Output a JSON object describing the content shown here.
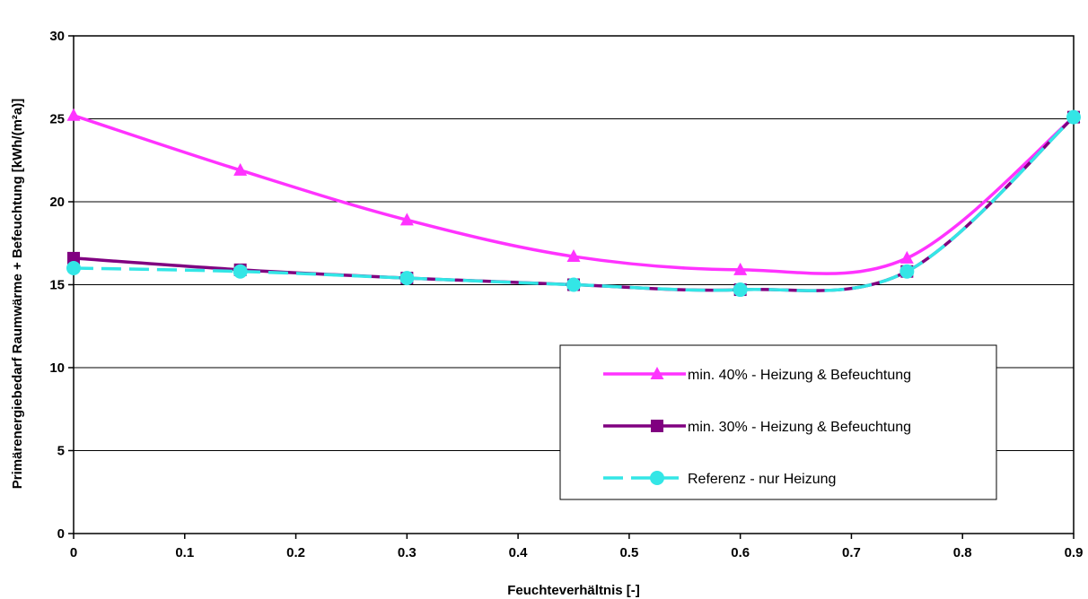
{
  "chart_data": {
    "type": "line",
    "title": "",
    "xlabel": "Feuchteverhältnis [-]",
    "ylabel": "Primärenergiebedarf Raumwärme + Befeuchtung [kWh/(m²a)]",
    "xlim": [
      0,
      0.9
    ],
    "ylim": [
      0,
      30
    ],
    "x_ticks": [
      "0",
      "0.1",
      "0.2",
      "0.3",
      "0.4",
      "0.5",
      "0.6",
      "0.7",
      "0.8",
      "0.9"
    ],
    "y_ticks": [
      "0",
      "5",
      "10",
      "15",
      "20",
      "25",
      "30"
    ],
    "grid": "horizontal",
    "legend_position": "bottom-right",
    "x": [
      0,
      0.15,
      0.3,
      0.45,
      0.6,
      0.75,
      0.9
    ],
    "series": [
      {
        "name": "min. 40% - Heizung & Befeuchtung",
        "values": [
          25.2,
          21.9,
          18.9,
          16.7,
          15.9,
          16.6,
          25.1
        ],
        "color": "#ff33ff",
        "marker": "triangle",
        "dash": "solid"
      },
      {
        "name": "min. 30% - Heizung & Befeuchtung",
        "values": [
          16.6,
          15.9,
          15.4,
          15.0,
          14.7,
          15.8,
          25.1
        ],
        "color": "#800080",
        "marker": "square",
        "dash": "solid"
      },
      {
        "name": "Referenz - nur Heizung",
        "values": [
          16.0,
          15.8,
          15.4,
          15.0,
          14.7,
          15.8,
          25.1
        ],
        "color": "#33e6e6",
        "marker": "circle",
        "dash": "dashed"
      }
    ]
  }
}
